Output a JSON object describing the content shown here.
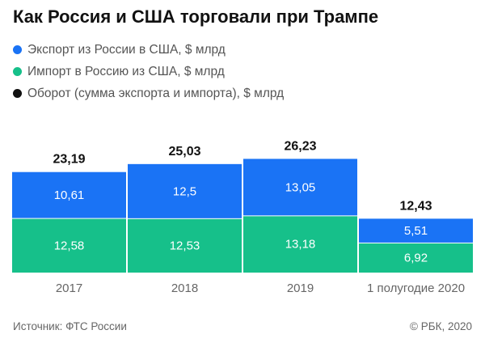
{
  "chart_data": {
    "type": "bar",
    "stacked": true,
    "title": "Как Россия и США торговали при Трампе",
    "categories": [
      "2017",
      "2018",
      "2019",
      "1 полугодие 2020"
    ],
    "series": [
      {
        "name": "Импорт в Россию из США, $ млрд",
        "values": [
          "12,58",
          "12,53",
          "13,18",
          "6,92"
        ],
        "color": "#16c08a"
      },
      {
        "name": "Экспорт из России в США, $ млрд",
        "values": [
          "10,61",
          "12,5",
          "13,05",
          "5,51"
        ],
        "color": "#1a73f5"
      }
    ],
    "totals": {
      "name": "Оборот (сумма экспорта и импорта), $ млрд",
      "values": [
        "23,19",
        "25,03",
        "26,23",
        "12,43"
      ],
      "color": "#111111"
    },
    "legend_position": "top-left",
    "grid": false
  },
  "footer": {
    "source": "Источник: ФТС России",
    "credit": "© РБК, 2020"
  }
}
